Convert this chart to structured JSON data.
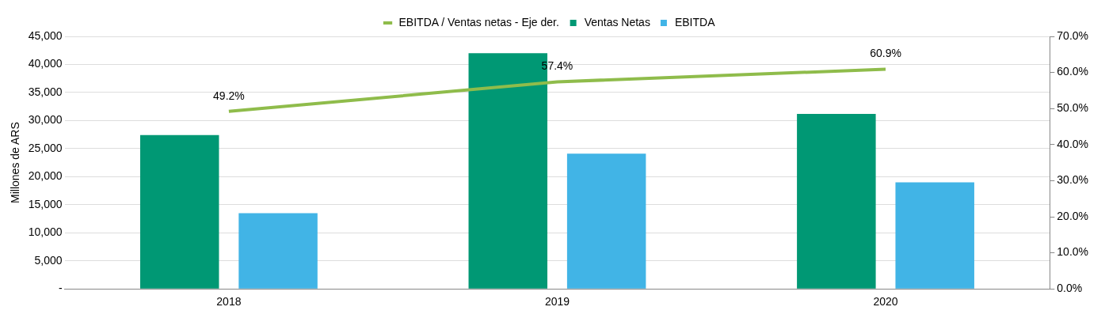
{
  "chart_data": {
    "type": "bar",
    "ylabel": "Millones de ARS",
    "categories": [
      "2018",
      "2019",
      "2020"
    ],
    "series": [
      {
        "name": "Ventas Netas",
        "color": "#009874",
        "values": [
          27400,
          42000,
          31200
        ]
      },
      {
        "name": "EBITDA",
        "color": "#41b4e6",
        "values": [
          13500,
          24100,
          19000
        ]
      },
      {
        "name": "EBITDA / Ventas netas - Eje der.",
        "type": "line",
        "axis": "y2",
        "color": "#8fbc4b",
        "values": [
          49.2,
          57.4,
          60.9
        ],
        "value_labels": [
          "49.2%",
          "57.4%",
          "60.9%"
        ]
      }
    ],
    "ylim": [
      0,
      45000
    ],
    "yticks": [
      {
        "value": 0,
        "label": "-"
      },
      {
        "value": 5000,
        "label": "5,000"
      },
      {
        "value": 10000,
        "label": "10,000"
      },
      {
        "value": 15000,
        "label": "15,000"
      },
      {
        "value": 20000,
        "label": "20,000"
      },
      {
        "value": 25000,
        "label": "25,000"
      },
      {
        "value": 30000,
        "label": "30,000"
      },
      {
        "value": 35000,
        "label": "35,000"
      },
      {
        "value": 40000,
        "label": "40,000"
      },
      {
        "value": 45000,
        "label": "45,000"
      }
    ],
    "y2lim": [
      0,
      70
    ],
    "y2ticks": [
      {
        "value": 0,
        "label": "0.0%"
      },
      {
        "value": 10,
        "label": "10.0%"
      },
      {
        "value": 20,
        "label": "20.0%"
      },
      {
        "value": 30,
        "label": "30.0%"
      },
      {
        "value": 40,
        "label": "40.0%"
      },
      {
        "value": 50,
        "label": "50.0%"
      },
      {
        "value": 60,
        "label": "60.0%"
      },
      {
        "value": 70,
        "label": "70.0%"
      }
    ],
    "grid": "y",
    "legend": "top"
  }
}
